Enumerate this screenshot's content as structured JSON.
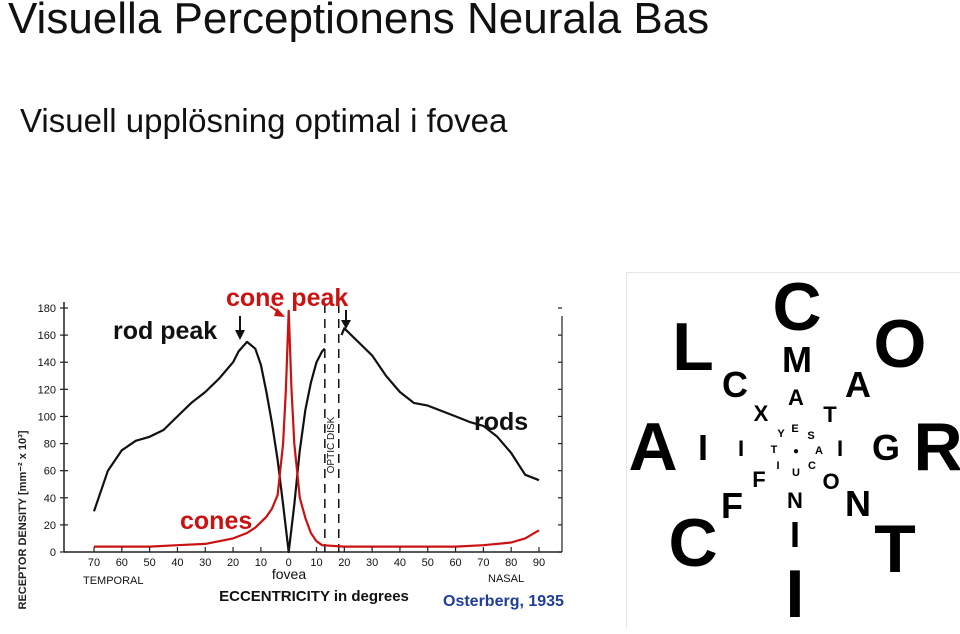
{
  "title": "Visuella Perceptionens Neurala Bas",
  "subtitle": "Visuell upplösning optimal i fovea",
  "chart_data": {
    "type": "line",
    "ylabel": "RECEPTOR DENSITY [mm⁻² x 10³]",
    "xlabel": "ECCENTRICITY in degrees",
    "ylim": [
      0,
      180
    ],
    "xlim": [
      -72,
      95
    ],
    "y_ticks": [
      0,
      20,
      40,
      60,
      80,
      100,
      120,
      140,
      160,
      180
    ],
    "x_ticks": [
      -70,
      -60,
      -50,
      -40,
      -30,
      -20,
      -10,
      0,
      10,
      20,
      30,
      40,
      50,
      60,
      70,
      80,
      90
    ],
    "x_tick_labels": [
      "70",
      "60",
      "50",
      "40",
      "30",
      "20",
      "10",
      "0",
      "10",
      "20",
      "30",
      "40",
      "50",
      "60",
      "70",
      "80",
      "90"
    ],
    "fovea_label": "fovea",
    "temporal_label": "TEMPORAL",
    "nasal_label": "NASAL",
    "optic_disk_label": "OPTIC DISK",
    "optic_disk_range": [
      13,
      18
    ],
    "annotations": {
      "rod_peak": "rod peak",
      "cone_peak": "cone peak",
      "rods": "rods",
      "cones": "cones"
    },
    "citation": "Osterberg, 1935",
    "series": [
      {
        "name": "rods",
        "color": "#111111",
        "x": [
          -70,
          -65,
          -60,
          -55,
          -50,
          -45,
          -40,
          -35,
          -30,
          -25,
          -20,
          -18,
          -15,
          -12,
          -10,
          -8,
          -6,
          -4,
          -2,
          0,
          2,
          4,
          6,
          8,
          10,
          12,
          13,
          18,
          19,
          20,
          25,
          30,
          35,
          40,
          45,
          50,
          55,
          60,
          65,
          70,
          75,
          80,
          85,
          90
        ],
        "y": [
          30,
          60,
          75,
          82,
          85,
          90,
          100,
          110,
          118,
          128,
          140,
          148,
          155,
          150,
          138,
          118,
          95,
          68,
          35,
          0,
          35,
          75,
          105,
          125,
          140,
          148,
          150,
          null,
          160,
          165,
          155,
          145,
          130,
          118,
          110,
          108,
          104,
          100,
          96,
          93,
          85,
          73,
          57,
          53
        ]
      },
      {
        "name": "cones",
        "color": "#cc1111",
        "x": [
          -70,
          -60,
          -50,
          -40,
          -30,
          -25,
          -20,
          -15,
          -12,
          -10,
          -8,
          -6,
          -4,
          -2,
          -1,
          0,
          1,
          2,
          4,
          6,
          8,
          10,
          12,
          20,
          30,
          40,
          50,
          60,
          70,
          80,
          85,
          90
        ],
        "y": [
          4,
          4,
          4,
          5,
          6,
          8,
          10,
          14,
          18,
          22,
          26,
          32,
          42,
          80,
          120,
          178,
          120,
          80,
          40,
          25,
          14,
          8,
          5,
          4,
          4,
          4,
          4,
          4,
          5,
          7,
          10,
          16
        ]
      }
    ]
  },
  "acuity_chart": {
    "center_dot": "●",
    "letters": [
      "C",
      "M",
      "A",
      "E",
      "Y",
      "S",
      "T",
      "A",
      "I",
      "U",
      "C",
      "N",
      "I",
      "I",
      "L",
      "C",
      "X",
      "T",
      "I",
      "F",
      "O",
      "N",
      "T",
      "A",
      "O",
      "A",
      "I",
      "I",
      "G",
      "R",
      "C",
      "F"
    ]
  }
}
